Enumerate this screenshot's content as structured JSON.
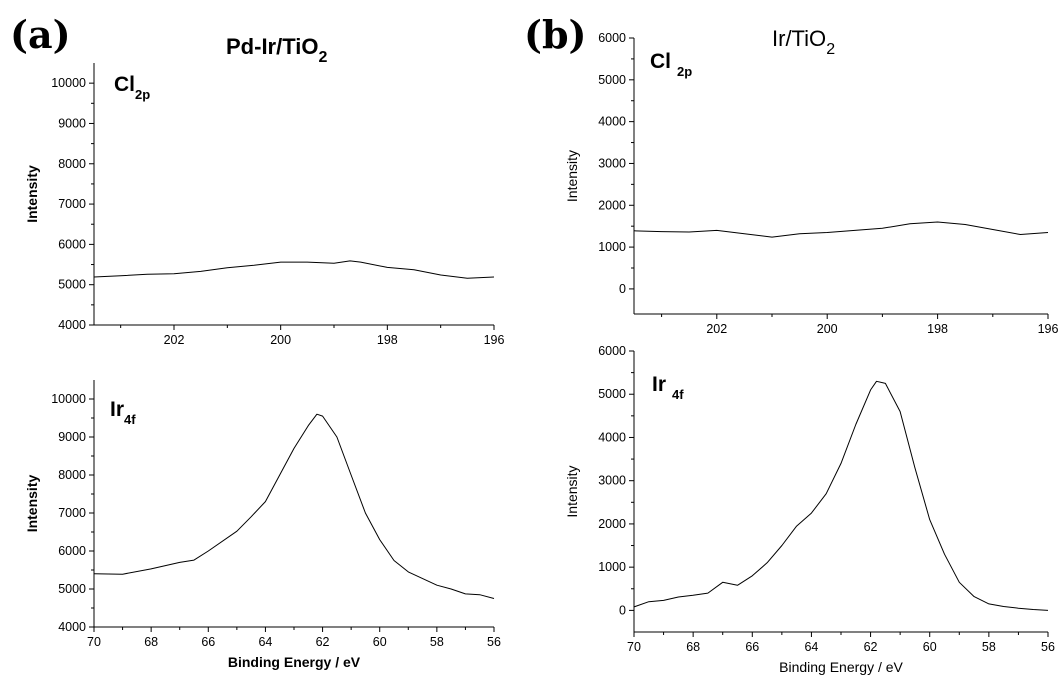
{
  "panels": {
    "a": {
      "letter": "(a)",
      "title": "Pd-Ir/TiO",
      "title_sub": "2"
    },
    "b": {
      "letter": "(b)",
      "title": "Ir/TiO",
      "title_sub": "2"
    }
  },
  "chart_data": [
    {
      "id": "a-cl2p",
      "type": "line",
      "annotation": "Cl",
      "annotation_sub": "2p",
      "xlabel": "",
      "ylabel": "Intensity",
      "xlim": [
        203.5,
        196
      ],
      "ylim": [
        4000,
        10500
      ],
      "xticks": [
        202,
        200,
        198,
        196
      ],
      "yticks": [
        4000,
        5000,
        6000,
        7000,
        8000,
        9000,
        10000
      ],
      "grid": false,
      "series": [
        {
          "x": [
            203.5,
            203,
            202.5,
            202,
            201.5,
            201,
            200.5,
            200,
            199.5,
            199,
            198.7,
            198.5,
            198,
            197.5,
            197,
            196.5,
            196
          ],
          "y": [
            5190,
            5220,
            5260,
            5270,
            5330,
            5420,
            5480,
            5560,
            5560,
            5530,
            5590,
            5560,
            5430,
            5370,
            5240,
            5160,
            5190
          ]
        }
      ]
    },
    {
      "id": "a-ir4f",
      "type": "line",
      "annotation": "Ir",
      "annotation_sub": "4f",
      "xlabel": "Binding Energy / eV",
      "ylabel": "Intensity",
      "xlim": [
        70,
        56
      ],
      "ylim": [
        4000,
        10500
      ],
      "xticks": [
        70,
        68,
        66,
        64,
        62,
        60,
        58,
        56
      ],
      "yticks": [
        4000,
        5000,
        6000,
        7000,
        8000,
        9000,
        10000
      ],
      "grid": false,
      "series": [
        {
          "x": [
            70,
            69,
            68,
            67,
            66.5,
            66,
            65,
            64.5,
            64,
            63.5,
            63,
            62.5,
            62.2,
            62,
            61.5,
            61,
            60.5,
            60,
            59.5,
            59,
            58,
            57.5,
            57,
            56.5,
            56
          ],
          "y": [
            5400,
            5390,
            5530,
            5700,
            5760,
            6000,
            6520,
            6900,
            7300,
            8000,
            8700,
            9300,
            9600,
            9550,
            9000,
            8000,
            7000,
            6300,
            5750,
            5450,
            5100,
            5000,
            4870,
            4850,
            4750
          ]
        }
      ]
    },
    {
      "id": "b-cl2p",
      "type": "line",
      "annotation": "Cl",
      "annotation_sub": "2p",
      "xlabel": "",
      "ylabel": "Intensity",
      "xlim": [
        203.5,
        196
      ],
      "ylim": [
        -600,
        6000
      ],
      "xticks": [
        202,
        200,
        198,
        196
      ],
      "yticks": [
        0,
        1000,
        2000,
        3000,
        4000,
        5000,
        6000
      ],
      "grid": false,
      "series": [
        {
          "x": [
            203.5,
            203,
            202.5,
            202,
            201.5,
            201,
            200.5,
            200,
            199.5,
            199,
            198.5,
            198,
            197.5,
            197,
            196.5,
            196
          ],
          "y": [
            1390,
            1370,
            1360,
            1400,
            1320,
            1240,
            1320,
            1350,
            1400,
            1450,
            1560,
            1600,
            1540,
            1420,
            1300,
            1350
          ]
        }
      ]
    },
    {
      "id": "b-ir4f",
      "type": "line",
      "annotation": "Ir",
      "annotation_sub": "4f",
      "xlabel": "Binding Energy / eV",
      "ylabel": "Intensity",
      "xlim": [
        70,
        56
      ],
      "ylim": [
        -500,
        6000
      ],
      "xticks": [
        70,
        68,
        66,
        64,
        62,
        60,
        58,
        56
      ],
      "yticks": [
        0,
        1000,
        2000,
        3000,
        4000,
        5000,
        6000
      ],
      "grid": false,
      "series": [
        {
          "x": [
            70,
            69.5,
            69,
            68.5,
            68,
            67.5,
            67,
            66.5,
            66,
            65.5,
            65,
            64.5,
            64,
            63.5,
            63,
            62.5,
            62,
            61.8,
            61.5,
            61,
            60.5,
            60,
            59.5,
            59,
            58.5,
            58,
            57.5,
            57,
            56.5,
            56
          ],
          "y": [
            80,
            200,
            230,
            310,
            350,
            400,
            650,
            580,
            800,
            1100,
            1500,
            1950,
            2250,
            2700,
            3400,
            4300,
            5100,
            5300,
            5250,
            4600,
            3300,
            2100,
            1300,
            650,
            320,
            150,
            90,
            50,
            20,
            0
          ]
        }
      ]
    }
  ]
}
